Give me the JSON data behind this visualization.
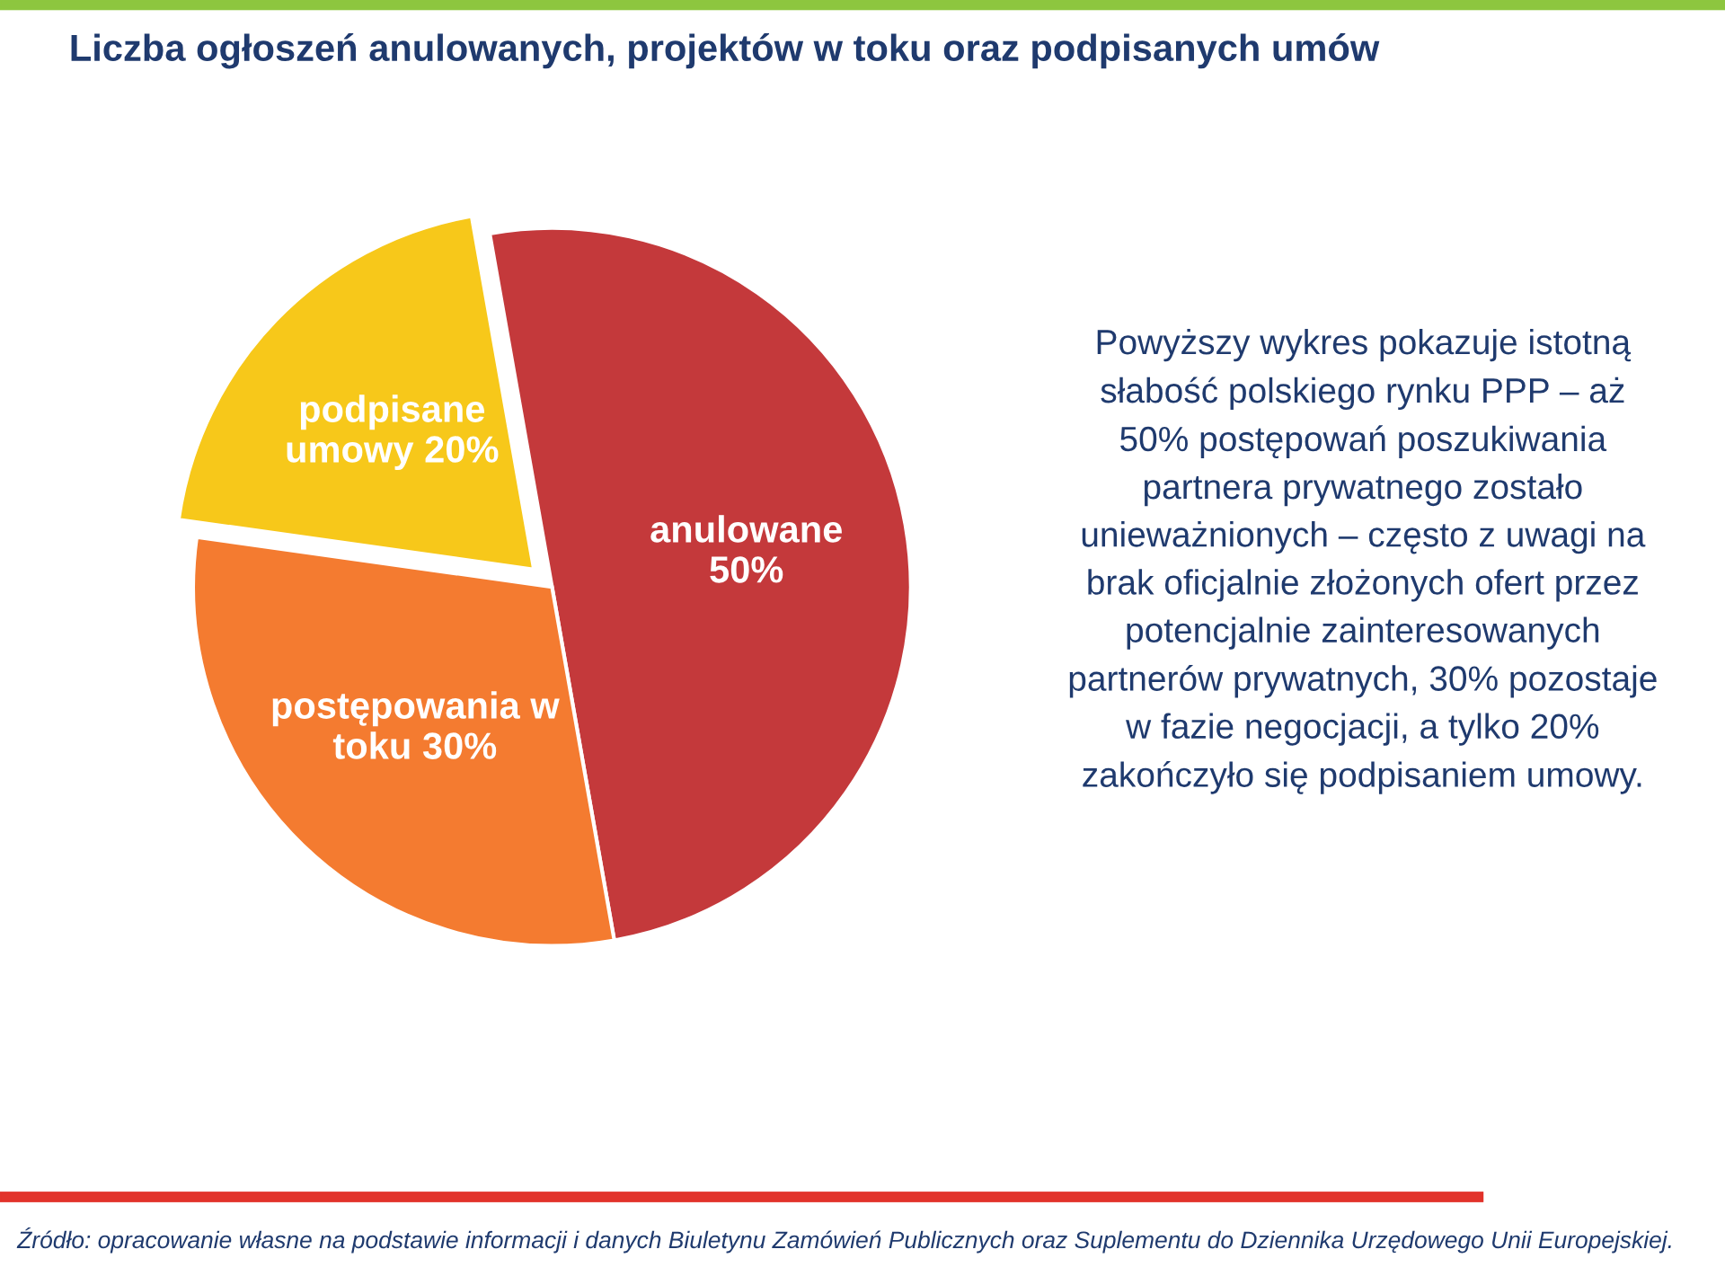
{
  "chart_data": {
    "type": "pie",
    "title": "Liczba ogłoszeń anulowanych, projektów w toku oraz podpisanych umów",
    "categories": [
      "anulowane",
      "postępowania w toku",
      "podpisane umowy"
    ],
    "values": [
      50,
      30,
      20
    ],
    "value_labels": [
      "50%",
      "30%",
      "20%"
    ],
    "colors": [
      "#c4393b",
      "#f47b30",
      "#f7c81a"
    ],
    "legend": false,
    "annotations": [
      "Powyższy wykres pokazuje istotną słabość polskiego rynku PPP – aż 50% postępowań poszukiwania partnera prywatnego zostało unieważnionych – często z uwagi na brak oficjalnie złożonych ofert przez potencjalnie zainteresowanych partnerów prywatnych, 30% pozostaje w fazie negocjacji, a tylko 20% zakończyło się podpisaniem umowy.",
      "Źródło: opracowanie własne na podstawie informacji i danych Biuletynu Zamówień Publicznych oraz Suplementu do Dziennika Urzędowego Unii Europejskiej."
    ]
  }
}
